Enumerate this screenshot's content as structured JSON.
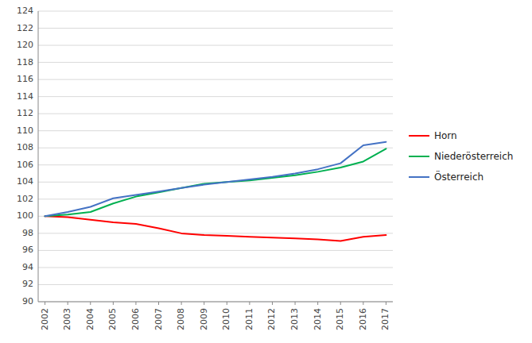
{
  "chart_data": {
    "type": "line",
    "x": [
      2002,
      2003,
      2004,
      2005,
      2006,
      2007,
      2008,
      2009,
      2010,
      2011,
      2012,
      2013,
      2014,
      2015,
      2016,
      2017
    ],
    "xlim": [
      2001.7,
      2017.3
    ],
    "xticks": [
      2002,
      2003,
      2004,
      2005,
      2006,
      2007,
      2008,
      2009,
      2010,
      2011,
      2012,
      2013,
      2014,
      2015,
      2016,
      2017
    ],
    "ylim": [
      90,
      124
    ],
    "yticks": [
      90,
      92,
      94,
      96,
      98,
      100,
      102,
      104,
      106,
      108,
      110,
      112,
      114,
      116,
      118,
      120,
      122,
      124
    ],
    "grid": true,
    "legend": "right",
    "series": [
      {
        "name": "Horn",
        "color": "#ff0000",
        "values": [
          100.0,
          99.9,
          99.6,
          99.3,
          99.1,
          98.6,
          98.0,
          97.8,
          97.7,
          97.6,
          97.5,
          97.4,
          97.3,
          97.1,
          97.6,
          97.8
        ]
      },
      {
        "name": "Niederösterreich",
        "color": "#00b050",
        "values": [
          100.0,
          100.2,
          100.5,
          101.5,
          102.3,
          102.8,
          103.3,
          103.8,
          104.0,
          104.2,
          104.5,
          104.8,
          105.2,
          105.7,
          106.4,
          107.9
        ]
      },
      {
        "name": "Österreich",
        "color": "#4472c4",
        "values": [
          100.0,
          100.5,
          101.1,
          102.1,
          102.5,
          102.9,
          103.3,
          103.7,
          104.0,
          104.3,
          104.6,
          105.0,
          105.5,
          106.2,
          108.3,
          108.7
        ]
      }
    ]
  }
}
